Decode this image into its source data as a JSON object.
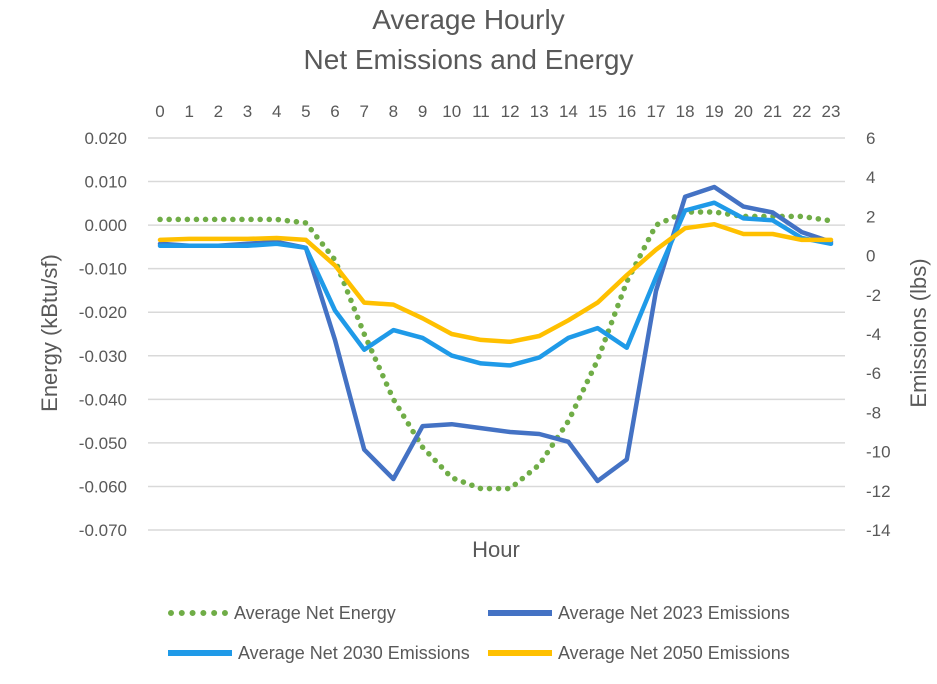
{
  "chart_data": {
    "type": "line",
    "title_lines": [
      "Average Hourly",
      "Net Emissions and Energy"
    ],
    "xlabel": "Hour",
    "ylabel_left": "Energy (kBtu/sf)",
    "ylabel_right": "Emissions (lbs)",
    "x": [
      0,
      1,
      2,
      3,
      4,
      5,
      6,
      7,
      8,
      9,
      10,
      11,
      12,
      13,
      14,
      15,
      16,
      17,
      18,
      19,
      20,
      21,
      22,
      23
    ],
    "y_left_lim": [
      -0.07,
      0.02
    ],
    "y_left_ticks": [
      "0.020",
      "0.010",
      "0.000",
      "-0.010",
      "-0.020",
      "-0.030",
      "-0.040",
      "-0.050",
      "-0.060",
      "-0.070"
    ],
    "y_right_lim": [
      -14,
      6
    ],
    "y_right_ticks": [
      "6",
      "4",
      "2",
      "0",
      "-2",
      "-4",
      "-6",
      "-8",
      "-10",
      "-12",
      "-14"
    ],
    "grid": true,
    "legend_position": "bottom",
    "series": [
      {
        "name": "Average Net Energy",
        "axis": "left",
        "style": "dotted",
        "color": "#70ad47",
        "values": [
          0.0013,
          0.0013,
          0.0013,
          0.0013,
          0.0013,
          0.0005,
          -0.008,
          -0.025,
          -0.04,
          -0.051,
          -0.058,
          -0.0605,
          -0.0605,
          -0.055,
          -0.045,
          -0.031,
          -0.013,
          0.0,
          0.003,
          0.003,
          0.002,
          0.002,
          0.002,
          0.001
        ]
      },
      {
        "name": "Average Net 2023 Emissions",
        "axis": "right",
        "style": "solid",
        "color": "#4472c4",
        "values": [
          0.6,
          0.5,
          0.5,
          0.6,
          0.7,
          0.4,
          -4.3,
          -9.9,
          -11.4,
          -8.7,
          -8.6,
          -8.8,
          -9.0,
          -9.1,
          -9.5,
          -11.5,
          -10.4,
          -1.8,
          3.0,
          3.5,
          2.5,
          2.2,
          1.2,
          0.7
        ]
      },
      {
        "name": "Average Net 2030 Emissions",
        "axis": "right",
        "style": "solid",
        "color": "#1f9ae8",
        "values": [
          0.5,
          0.5,
          0.5,
          0.5,
          0.6,
          0.4,
          -2.8,
          -4.8,
          -3.8,
          -4.2,
          -5.1,
          -5.5,
          -5.6,
          -5.2,
          -4.2,
          -3.7,
          -4.7,
          -1.1,
          2.3,
          2.7,
          1.9,
          1.8,
          0.9,
          0.6
        ]
      },
      {
        "name": "Average Net 2050 Emissions",
        "axis": "right",
        "style": "solid",
        "color": "#ffc000",
        "values": [
          0.8,
          0.85,
          0.85,
          0.85,
          0.9,
          0.8,
          -0.5,
          -2.4,
          -2.5,
          -3.2,
          -4.0,
          -4.3,
          -4.4,
          -4.1,
          -3.3,
          -2.4,
          -1.0,
          0.3,
          1.4,
          1.6,
          1.1,
          1.1,
          0.8,
          0.8
        ]
      }
    ]
  }
}
